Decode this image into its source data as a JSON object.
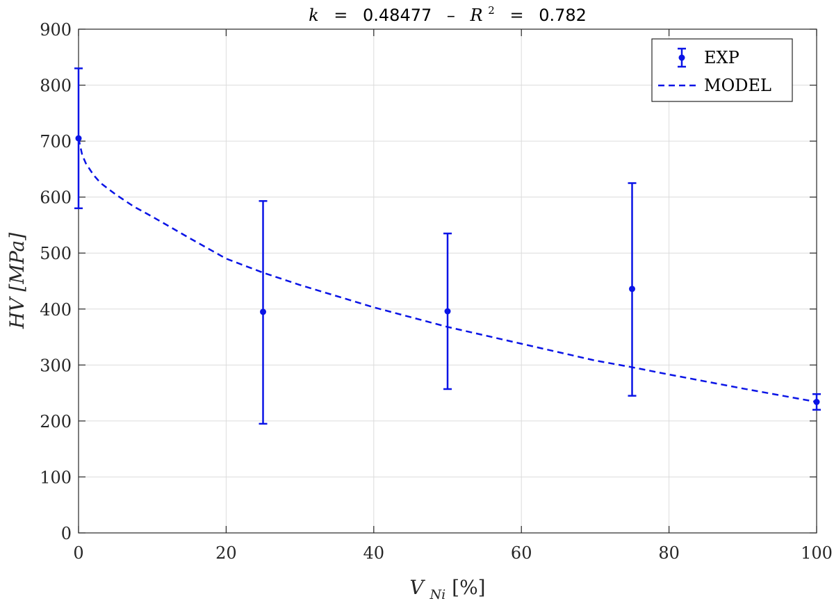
{
  "chart_data": {
    "type": "line",
    "title": {
      "k_symbol": "k",
      "k_value": "0.48477",
      "separator": "–",
      "r_symbol": "R",
      "r_power": "2",
      "r_value": "0.782",
      "eq": "="
    },
    "xlabel": {
      "main": "V",
      "sub": "Ni",
      "unit": "[%]"
    },
    "ylabel": "HV [MPa]",
    "xlim": [
      0,
      100
    ],
    "ylim": [
      0,
      900
    ],
    "xticks": [
      0,
      20,
      40,
      60,
      80,
      100
    ],
    "yticks": [
      0,
      100,
      200,
      300,
      400,
      500,
      600,
      700,
      800,
      900
    ],
    "grid": true,
    "legend_position": "top-right",
    "series": [
      {
        "name": "EXP",
        "kind": "errorbar",
        "color": "#0a14e6",
        "points": [
          {
            "x": 0,
            "y": 705,
            "lower": 580,
            "upper": 830
          },
          {
            "x": 25,
            "y": 395,
            "lower": 195,
            "upper": 593
          },
          {
            "x": 50,
            "y": 396,
            "lower": 257,
            "upper": 535
          },
          {
            "x": 75,
            "y": 436,
            "lower": 245,
            "upper": 625
          },
          {
            "x": 100,
            "y": 234,
            "lower": 220,
            "upper": 248
          }
        ]
      },
      {
        "name": "MODEL",
        "kind": "dashed-line",
        "color": "#0a14e6",
        "x": [
          0,
          0.5,
          1,
          2,
          3,
          5,
          7.5,
          10,
          15,
          20,
          25,
          30,
          40,
          50,
          60,
          70,
          75,
          80,
          90,
          100
        ],
        "y": [
          705,
          675,
          660,
          640,
          625,
          605,
          583,
          565,
          527,
          490,
          465,
          443,
          403,
          368,
          338,
          308,
          296,
          283,
          258,
          234
        ]
      }
    ]
  }
}
